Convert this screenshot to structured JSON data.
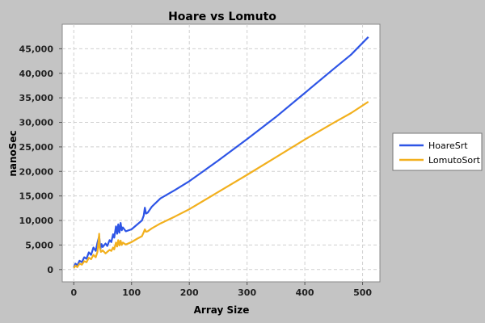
{
  "chart_data": {
    "type": "line",
    "title": "Hoare vs Lomuto",
    "xlabel": "Array Size",
    "ylabel": "nanoSec",
    "xlim": [
      -20,
      530
    ],
    "ylim": [
      -2500,
      50000
    ],
    "x_ticks": [
      0,
      100,
      200,
      300,
      400,
      500
    ],
    "x_tick_labels": [
      "0",
      "100",
      "200",
      "300",
      "400",
      "500"
    ],
    "y_ticks": [
      0,
      5000,
      10000,
      15000,
      20000,
      25000,
      30000,
      35000,
      40000,
      45000
    ],
    "y_tick_labels": [
      "0",
      "5,000",
      "10,000",
      "15,000",
      "20,000",
      "25,000",
      "30,000",
      "35,000",
      "40,000",
      "45,000"
    ],
    "grid": true,
    "legend_position": "right",
    "series": [
      {
        "name": "HoareSrt",
        "color": "#2e55e6",
        "points": [
          [
            0,
            500
          ],
          [
            3,
            1200
          ],
          [
            6,
            800
          ],
          [
            10,
            1800
          ],
          [
            14,
            1500
          ],
          [
            18,
            2500
          ],
          [
            22,
            2200
          ],
          [
            26,
            3500
          ],
          [
            30,
            3000
          ],
          [
            34,
            4500
          ],
          [
            38,
            3800
          ],
          [
            41,
            5500
          ],
          [
            44,
            6800
          ],
          [
            46,
            4200
          ],
          [
            48,
            5200
          ],
          [
            50,
            4600
          ],
          [
            55,
            5300
          ],
          [
            58,
            4800
          ],
          [
            62,
            6000
          ],
          [
            65,
            5600
          ],
          [
            68,
            7200
          ],
          [
            70,
            6500
          ],
          [
            73,
            8800
          ],
          [
            75,
            7300
          ],
          [
            77,
            9200
          ],
          [
            79,
            7500
          ],
          [
            81,
            9500
          ],
          [
            83,
            8000
          ],
          [
            85,
            8600
          ],
          [
            90,
            7800
          ],
          [
            100,
            8200
          ],
          [
            110,
            9200
          ],
          [
            118,
            10000
          ],
          [
            121,
            11000
          ],
          [
            123,
            12600
          ],
          [
            125,
            11400
          ],
          [
            128,
            11600
          ],
          [
            135,
            12800
          ],
          [
            150,
            14500
          ],
          [
            175,
            16200
          ],
          [
            200,
            18000
          ],
          [
            250,
            22200
          ],
          [
            300,
            26600
          ],
          [
            350,
            31100
          ],
          [
            400,
            36000
          ],
          [
            450,
            40900
          ],
          [
            480,
            43800
          ],
          [
            510,
            47400
          ]
        ]
      },
      {
        "name": "LomutoSort",
        "color": "#f2b01e",
        "points": [
          [
            0,
            300
          ],
          [
            3,
            800
          ],
          [
            6,
            500
          ],
          [
            10,
            1200
          ],
          [
            14,
            1000
          ],
          [
            18,
            1700
          ],
          [
            22,
            1500
          ],
          [
            26,
            2400
          ],
          [
            30,
            2100
          ],
          [
            34,
            3000
          ],
          [
            38,
            2500
          ],
          [
            41,
            3600
          ],
          [
            43,
            6000
          ],
          [
            44,
            7300
          ],
          [
            45,
            4500
          ],
          [
            47,
            3600
          ],
          [
            50,
            3900
          ],
          [
            55,
            3300
          ],
          [
            58,
            3600
          ],
          [
            62,
            4000
          ],
          [
            65,
            3800
          ],
          [
            68,
            4500
          ],
          [
            70,
            4100
          ],
          [
            73,
            5500
          ],
          [
            75,
            4700
          ],
          [
            77,
            6000
          ],
          [
            79,
            4900
          ],
          [
            81,
            5900
          ],
          [
            83,
            5000
          ],
          [
            85,
            5500
          ],
          [
            90,
            5100
          ],
          [
            100,
            5600
          ],
          [
            110,
            6300
          ],
          [
            118,
            6800
          ],
          [
            121,
            7600
          ],
          [
            123,
            8200
          ],
          [
            125,
            7700
          ],
          [
            128,
            7800
          ],
          [
            135,
            8400
          ],
          [
            150,
            9400
          ],
          [
            175,
            10800
          ],
          [
            200,
            12300
          ],
          [
            250,
            15800
          ],
          [
            300,
            19300
          ],
          [
            350,
            22900
          ],
          [
            400,
            26500
          ],
          [
            450,
            29900
          ],
          [
            480,
            31900
          ],
          [
            510,
            34200
          ]
        ]
      }
    ]
  }
}
